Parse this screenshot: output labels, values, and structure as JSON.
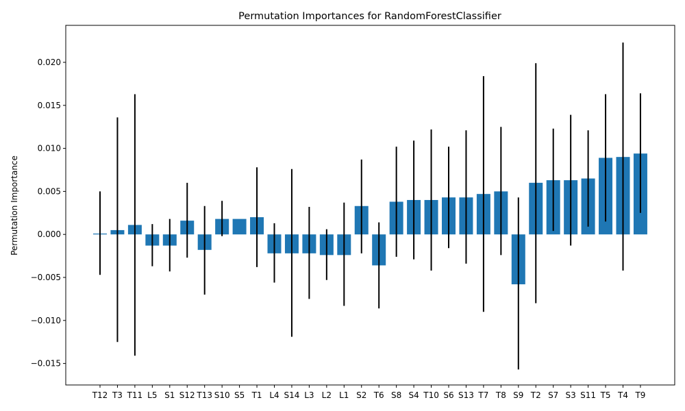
{
  "chart_data": {
    "type": "bar",
    "title": "Permutation Importances for RandomForestClassifier",
    "xlabel": "",
    "ylabel": "Permutation Importance",
    "bar_color": "#1f77b4",
    "error_color": "#000000",
    "ylim": [
      -0.0175,
      0.0243
    ],
    "yticks": [
      -0.015,
      -0.01,
      -0.005,
      0.0,
      0.005,
      0.01,
      0.015,
      0.02
    ],
    "ytick_labels": [
      "−0.015",
      "−0.010",
      "−0.005",
      "0.000",
      "0.005",
      "0.010",
      "0.015",
      "0.020"
    ],
    "grid": false,
    "categories": [
      "T12",
      "T3",
      "T11",
      "L5",
      "S1",
      "S12",
      "T13",
      "S10",
      "S5",
      "T1",
      "L4",
      "S14",
      "L3",
      "L2",
      "L1",
      "S2",
      "T6",
      "S8",
      "S4",
      "T10",
      "S6",
      "S13",
      "T7",
      "T8",
      "S9",
      "T2",
      "S7",
      "S3",
      "S11",
      "T5",
      "T4",
      "T9"
    ],
    "values": [
      0.0001,
      0.0005,
      0.0011,
      -0.0013,
      -0.0013,
      0.0016,
      -0.0018,
      0.0018,
      0.0018,
      0.002,
      -0.0022,
      -0.0022,
      -0.0022,
      -0.0024,
      -0.0024,
      0.0033,
      -0.0036,
      0.0038,
      0.004,
      0.004,
      0.0043,
      0.0043,
      0.0047,
      0.005,
      -0.0058,
      0.006,
      0.0063,
      0.0063,
      0.0065,
      0.0089,
      0.009,
      0.0094
    ],
    "error_low": [
      -0.0047,
      -0.0125,
      -0.0141,
      -0.0037,
      -0.0043,
      -0.0027,
      -0.007,
      -0.0002,
      0.0018,
      -0.0038,
      -0.0056,
      -0.0119,
      -0.0075,
      -0.0053,
      -0.0083,
      -0.0022,
      -0.0086,
      -0.0026,
      -0.0029,
      -0.0042,
      -0.0016,
      -0.0034,
      -0.009,
      -0.0024,
      -0.0157,
      -0.008,
      0.0004,
      -0.0013,
      0.0009,
      0.0015,
      -0.0042,
      0.0025
    ],
    "error_high": [
      0.005,
      0.0136,
      0.0163,
      0.0012,
      0.0018,
      0.006,
      0.0033,
      0.0039,
      0.0018,
      0.0078,
      0.0013,
      0.0076,
      0.0032,
      0.0006,
      0.0037,
      0.0087,
      0.0014,
      0.0102,
      0.0109,
      0.0122,
      0.0102,
      0.0121,
      0.0184,
      0.0125,
      0.0043,
      0.0199,
      0.0123,
      0.0139,
      0.0121,
      0.0163,
      0.0223,
      0.0164
    ]
  }
}
